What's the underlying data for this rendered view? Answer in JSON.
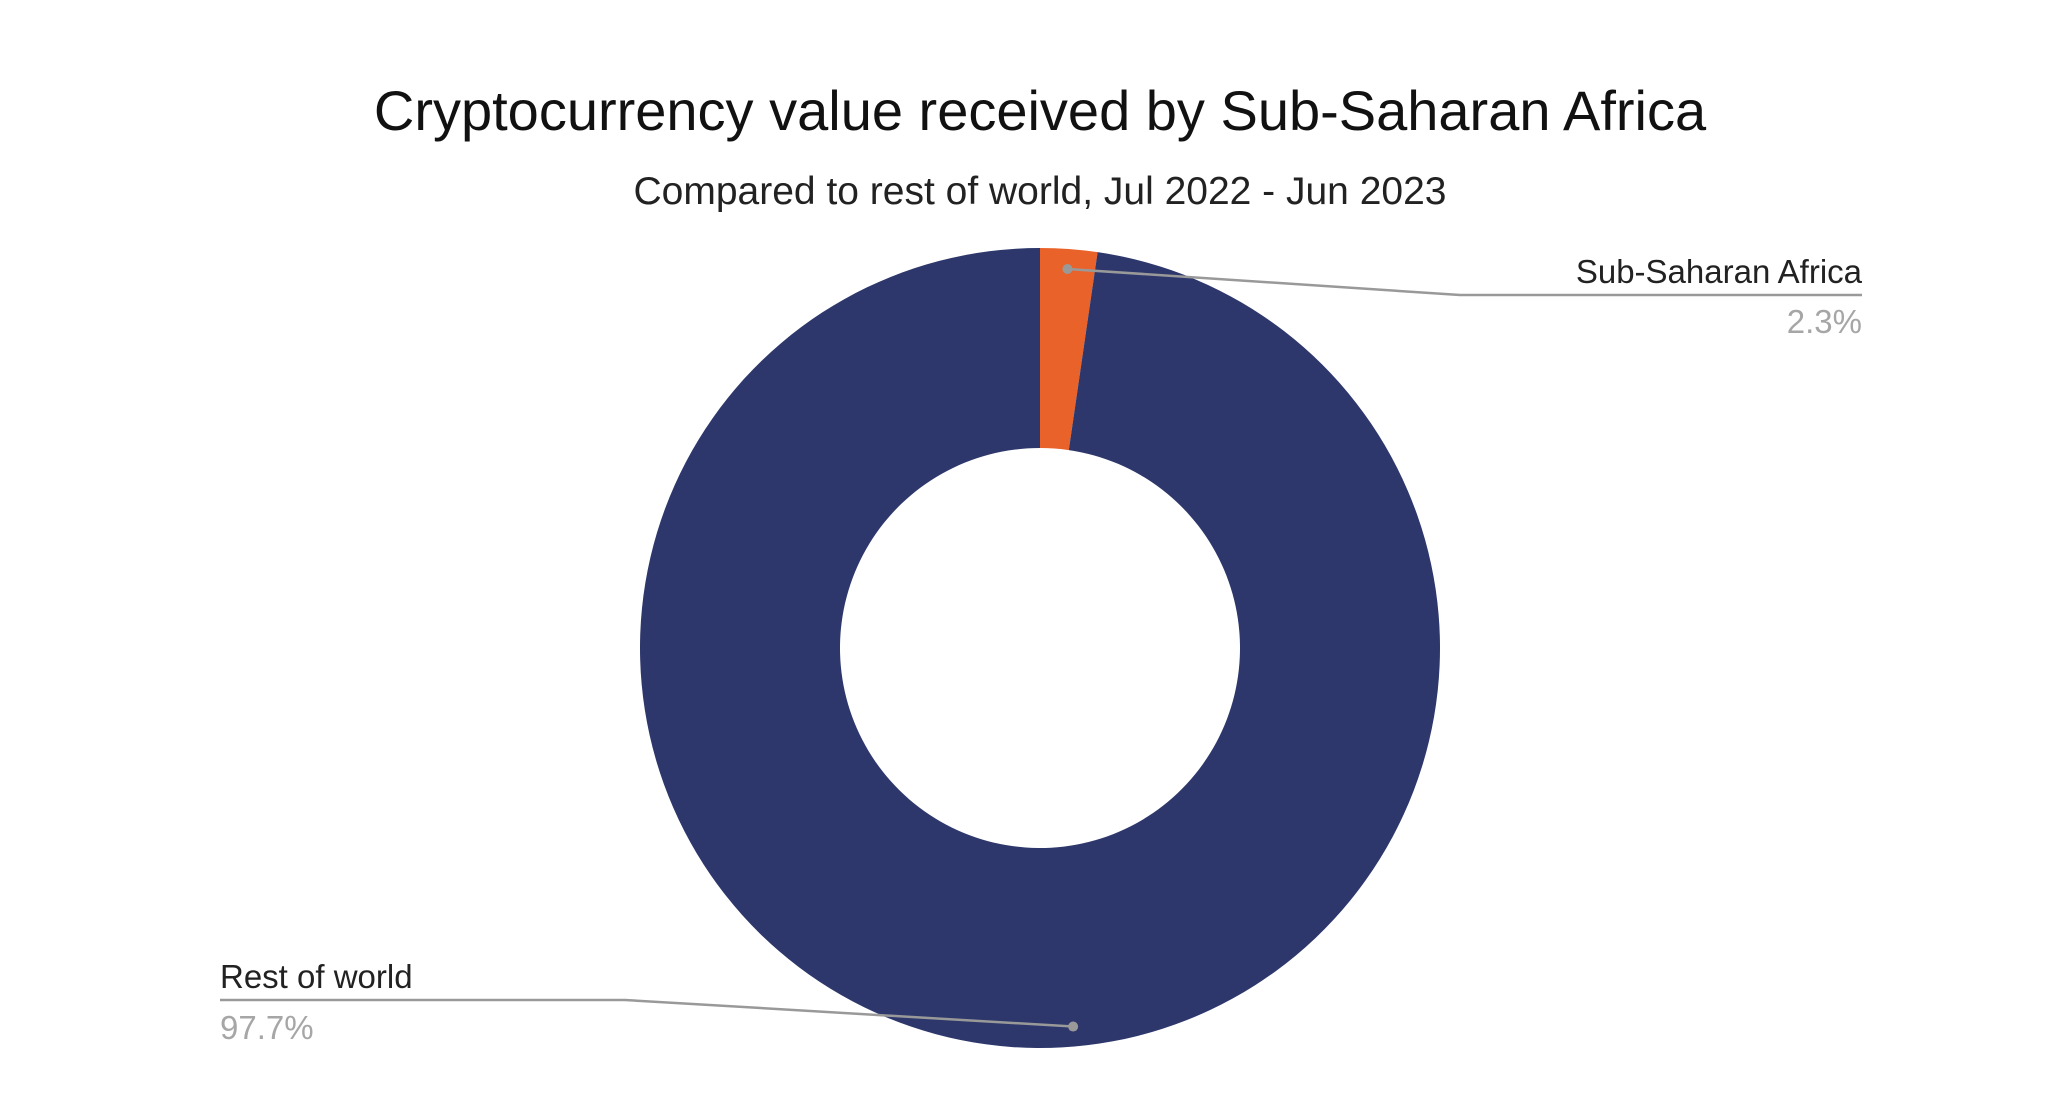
{
  "chart_data": {
    "type": "pie",
    "title": "Cryptocurrency value received by Sub-Saharan Africa",
    "subtitle": "Compared to rest of world, Jul 2022 - Jun 2023",
    "donut": true,
    "start_angle_deg": 0,
    "direction": "clockwise",
    "slices": [
      {
        "label": "Sub-Saharan Africa",
        "value": 2.3,
        "value_label": "2.3%",
        "color": "#e8622a"
      },
      {
        "label": "Rest of world",
        "value": 97.7,
        "value_label": "97.7%",
        "color": "#2d376b"
      }
    ],
    "legend": "none",
    "leader_line_color": "#999999"
  }
}
